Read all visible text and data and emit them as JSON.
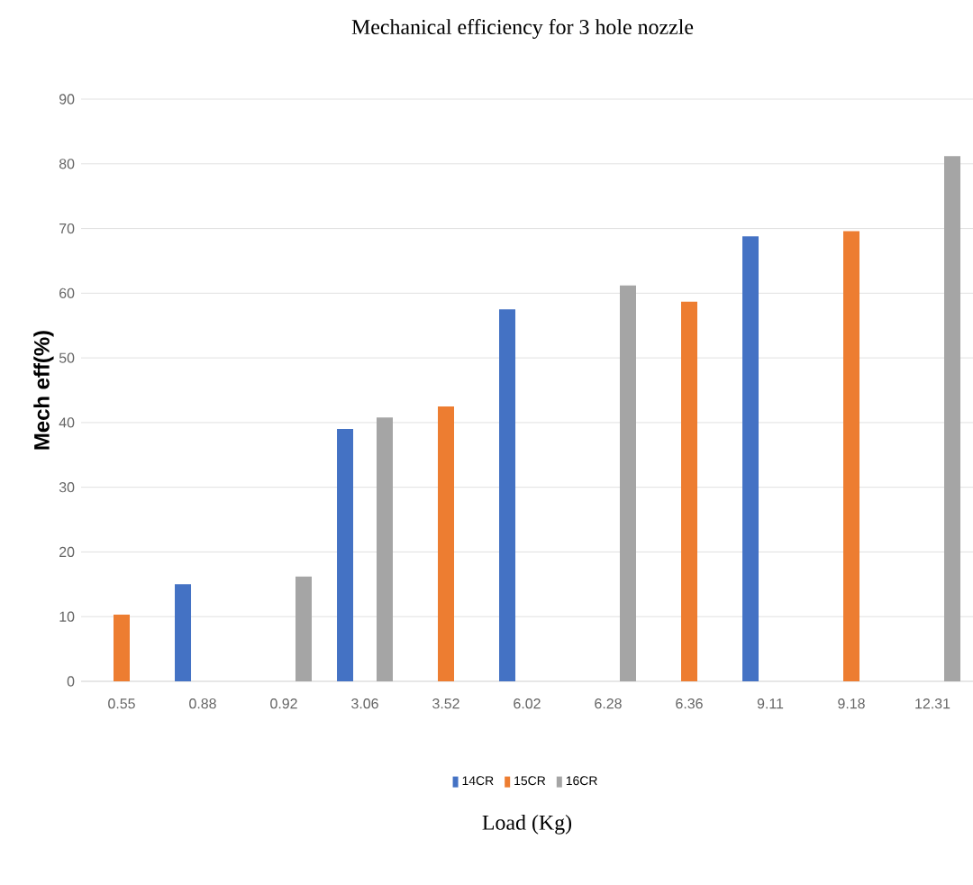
{
  "chart_data": {
    "type": "bar",
    "title": "Mechanical efficiency for 3 hole nozzle",
    "xlabel": "Load (Kg)",
    "ylabel": "Mech eff(%)",
    "categories": [
      "0.55",
      "0.88",
      "0.92",
      "3.06",
      "3.52",
      "6.02",
      "6.28",
      "6.36",
      "9.11",
      "9.18",
      "12.31"
    ],
    "series": [
      {
        "name": "14CR",
        "color": "#4472c4",
        "values": [
          null,
          15,
          null,
          39,
          null,
          57.5,
          null,
          null,
          68.8,
          null,
          null
        ]
      },
      {
        "name": "15CR",
        "color": "#ed7d31",
        "values": [
          10.3,
          null,
          null,
          null,
          42.5,
          null,
          null,
          58.7,
          null,
          69.6,
          null
        ]
      },
      {
        "name": "16CR",
        "color": "#a5a5a5",
        "values": [
          null,
          null,
          16.2,
          40.8,
          null,
          null,
          61.2,
          null,
          null,
          null,
          81.2
        ]
      }
    ],
    "ylim": [
      0,
      90
    ],
    "yticks": [
      0,
      10,
      20,
      30,
      40,
      50,
      60,
      70,
      80,
      90
    ],
    "grid": "y",
    "legend": "bottom"
  }
}
